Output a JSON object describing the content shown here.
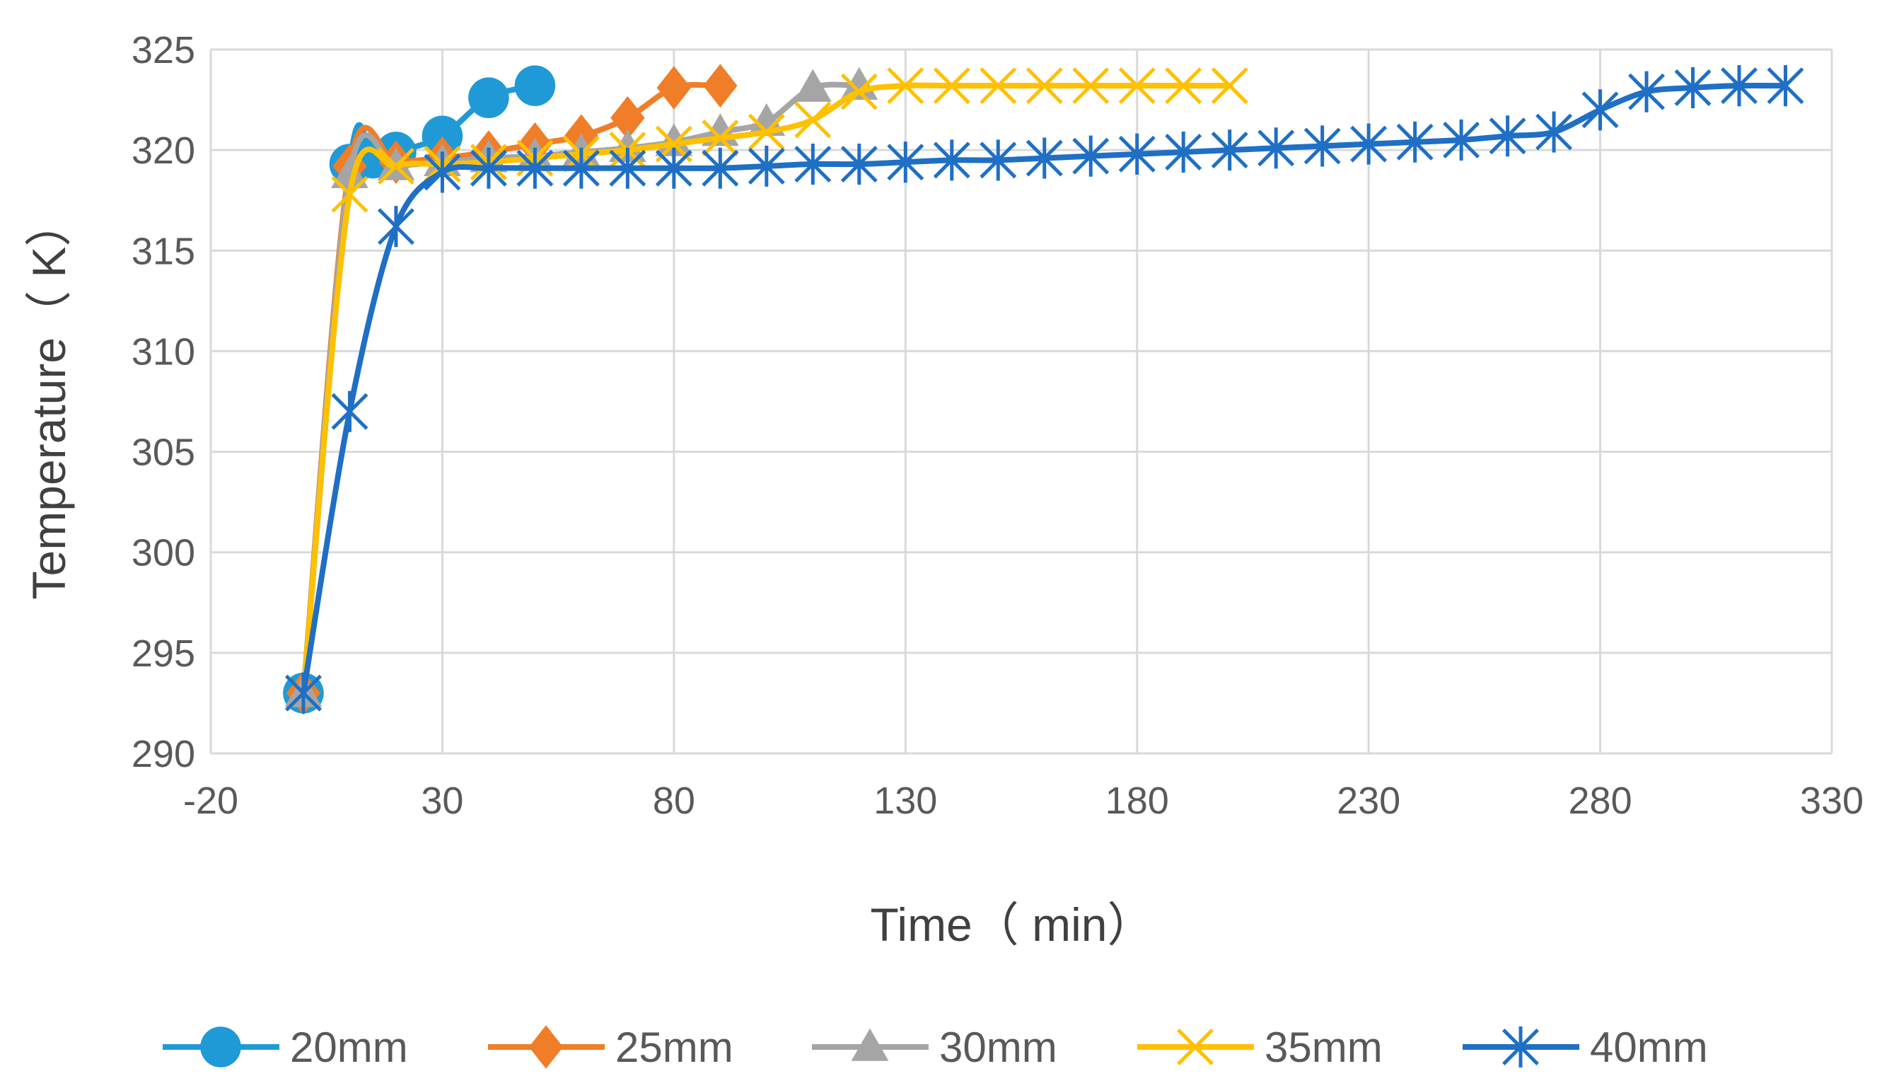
{
  "chart_data": {
    "type": "line",
    "xlabel": "Time（ min）",
    "ylabel": "Temperature（ K）",
    "xlim": [
      -20,
      330
    ],
    "ylim": [
      290,
      325
    ],
    "x_ticks": [
      -20,
      30,
      80,
      130,
      180,
      230,
      280,
      330
    ],
    "y_ticks": [
      290,
      295,
      300,
      305,
      310,
      315,
      320,
      325
    ],
    "grid": true,
    "legend_position": "bottom",
    "series": [
      {
        "name": "20mm",
        "color": "#1F9AD6",
        "marker": "circle",
        "x": [
          0,
          10,
          15,
          20,
          30,
          40,
          50
        ],
        "y": [
          293,
          319.3,
          319.6,
          319.9,
          320.7,
          322.6,
          323.2
        ]
      },
      {
        "name": "25mm",
        "color": "#F07D27",
        "marker": "diamond",
        "x": [
          0,
          10,
          20,
          30,
          40,
          50,
          60,
          70,
          80,
          90
        ],
        "y": [
          293,
          319.2,
          319.4,
          319.6,
          319.9,
          320.3,
          320.7,
          321.6,
          323.1,
          323.2
        ]
      },
      {
        "name": "30mm",
        "color": "#A5A5A5",
        "marker": "triangle",
        "x": [
          0,
          10,
          20,
          30,
          40,
          50,
          60,
          70,
          80,
          90,
          100,
          110,
          120
        ],
        "y": [
          293,
          318.8,
          319.2,
          319.4,
          319.6,
          319.7,
          319.9,
          320.1,
          320.4,
          320.9,
          321.4,
          323.1,
          323.2
        ]
      },
      {
        "name": "35mm",
        "color": "#FFC000",
        "marker": "x",
        "x": [
          0,
          10,
          20,
          30,
          40,
          50,
          60,
          70,
          80,
          90,
          100,
          110,
          120,
          130,
          140,
          150,
          160,
          170,
          180,
          190,
          200
        ],
        "y": [
          293,
          317.8,
          319.2,
          319.3,
          319.4,
          319.6,
          319.8,
          320.0,
          320.3,
          320.6,
          320.9,
          321.5,
          322.9,
          323.2,
          323.2,
          323.2,
          323.2,
          323.2,
          323.2,
          323.2,
          323.2
        ]
      },
      {
        "name": "40mm",
        "color": "#1F6FC5",
        "marker": "star",
        "x": [
          0,
          10,
          20,
          30,
          40,
          50,
          60,
          70,
          80,
          90,
          100,
          110,
          120,
          130,
          140,
          150,
          160,
          170,
          180,
          190,
          200,
          210,
          220,
          230,
          240,
          250,
          260,
          270,
          280,
          290,
          300,
          310,
          320
        ],
        "y": [
          293,
          307,
          316.2,
          318.9,
          319.1,
          319.1,
          319.1,
          319.1,
          319.1,
          319.1,
          319.2,
          319.3,
          319.3,
          319.4,
          319.5,
          319.5,
          319.6,
          319.7,
          319.8,
          319.9,
          320.0,
          320.1,
          320.2,
          320.3,
          320.4,
          320.5,
          320.7,
          320.9,
          322.0,
          322.9,
          323.1,
          323.2,
          323.2
        ]
      }
    ]
  }
}
